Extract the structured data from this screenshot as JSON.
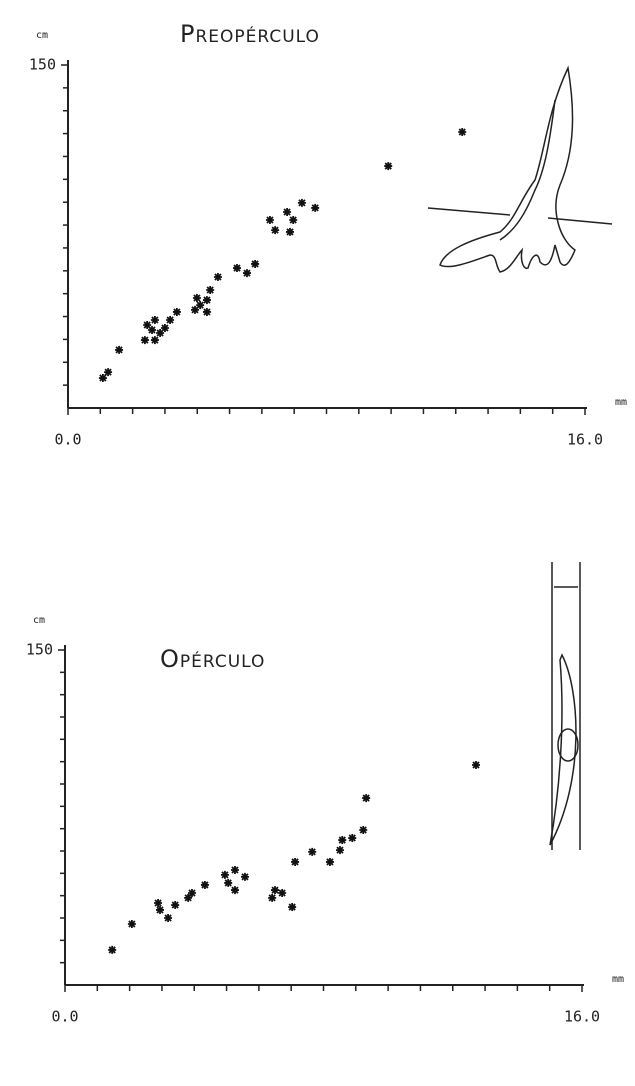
{
  "chart_data": [
    {
      "type": "scatter",
      "title": "Preopérculo",
      "y_unit": "cm",
      "x_unit": "mm",
      "xlim": [
        0,
        16
      ],
      "ylim": [
        0,
        150
      ],
      "xticks": [
        {
          "value": 0,
          "label": "0.0"
        },
        {
          "value": 16,
          "label": "16.0"
        }
      ],
      "yticks": [
        150
      ],
      "xminor_ticks": [
        1,
        2,
        3,
        4,
        5,
        6,
        7,
        8,
        9,
        10,
        11,
        12,
        13,
        14,
        15
      ],
      "yminor_ticks": [
        10,
        20,
        30,
        40,
        50,
        60,
        70,
        80,
        90,
        100,
        110,
        120,
        130,
        140
      ],
      "color": "#111",
      "x": [
        1.08,
        1.24,
        1.58,
        2.38,
        2.45,
        2.6,
        2.69,
        2.69,
        2.85,
        3.0,
        3.16,
        3.37,
        3.93,
        3.99,
        4.09,
        4.3,
        4.3,
        4.4,
        4.64,
        5.23,
        5.54,
        5.79,
        6.25,
        6.41,
        6.78,
        6.87,
        6.97,
        7.24,
        7.65,
        9.91,
        12.2
      ],
      "values": [
        13.1,
        15.7,
        25.4,
        29.7,
        36.3,
        34.1,
        38.5,
        29.7,
        32.8,
        35,
        38.5,
        42,
        42.9,
        48.1,
        45,
        42,
        47.2,
        51.6,
        57.3,
        61.2,
        59,
        63,
        82.2,
        77.8,
        85.7,
        77,
        82.2,
        89.7,
        87.5,
        105.8,
        120.7
      ]
    },
    {
      "type": "scatter",
      "title": "Opérculo",
      "y_unit": "cm",
      "x_unit": "mm",
      "xlim": [
        0,
        16
      ],
      "ylim": [
        0,
        150
      ],
      "xticks": [
        {
          "value": 0,
          "label": "0.0"
        },
        {
          "value": 16,
          "label": "16.0"
        }
      ],
      "yticks": [
        150
      ],
      "xminor_ticks": [
        1,
        2,
        3,
        4,
        5,
        6,
        7,
        8,
        9,
        10,
        11,
        12,
        13,
        14,
        15
      ],
      "yminor_ticks": [
        10,
        20,
        30,
        40,
        50,
        60,
        70,
        80,
        90,
        100,
        110,
        120,
        130,
        140
      ],
      "color": "#111",
      "x": [
        1.46,
        2.07,
        2.88,
        2.94,
        3.19,
        3.41,
        3.81,
        3.93,
        4.33,
        4.95,
        5.05,
        5.26,
        5.26,
        5.57,
        6.41,
        6.5,
        6.72,
        7.03,
        7.12,
        7.65,
        8.2,
        8.51,
        8.58,
        8.89,
        9.23,
        9.32,
        12.72
      ],
      "values": [
        15.7,
        27.3,
        36.7,
        33.6,
        30,
        35.8,
        39,
        41.2,
        44.8,
        49.3,
        45.7,
        42.5,
        51.5,
        48.4,
        39,
        42.5,
        41.2,
        34.9,
        55.1,
        59.6,
        55.1,
        60.4,
        64.9,
        65.8,
        69.4,
        83.7,
        98.5
      ]
    }
  ]
}
